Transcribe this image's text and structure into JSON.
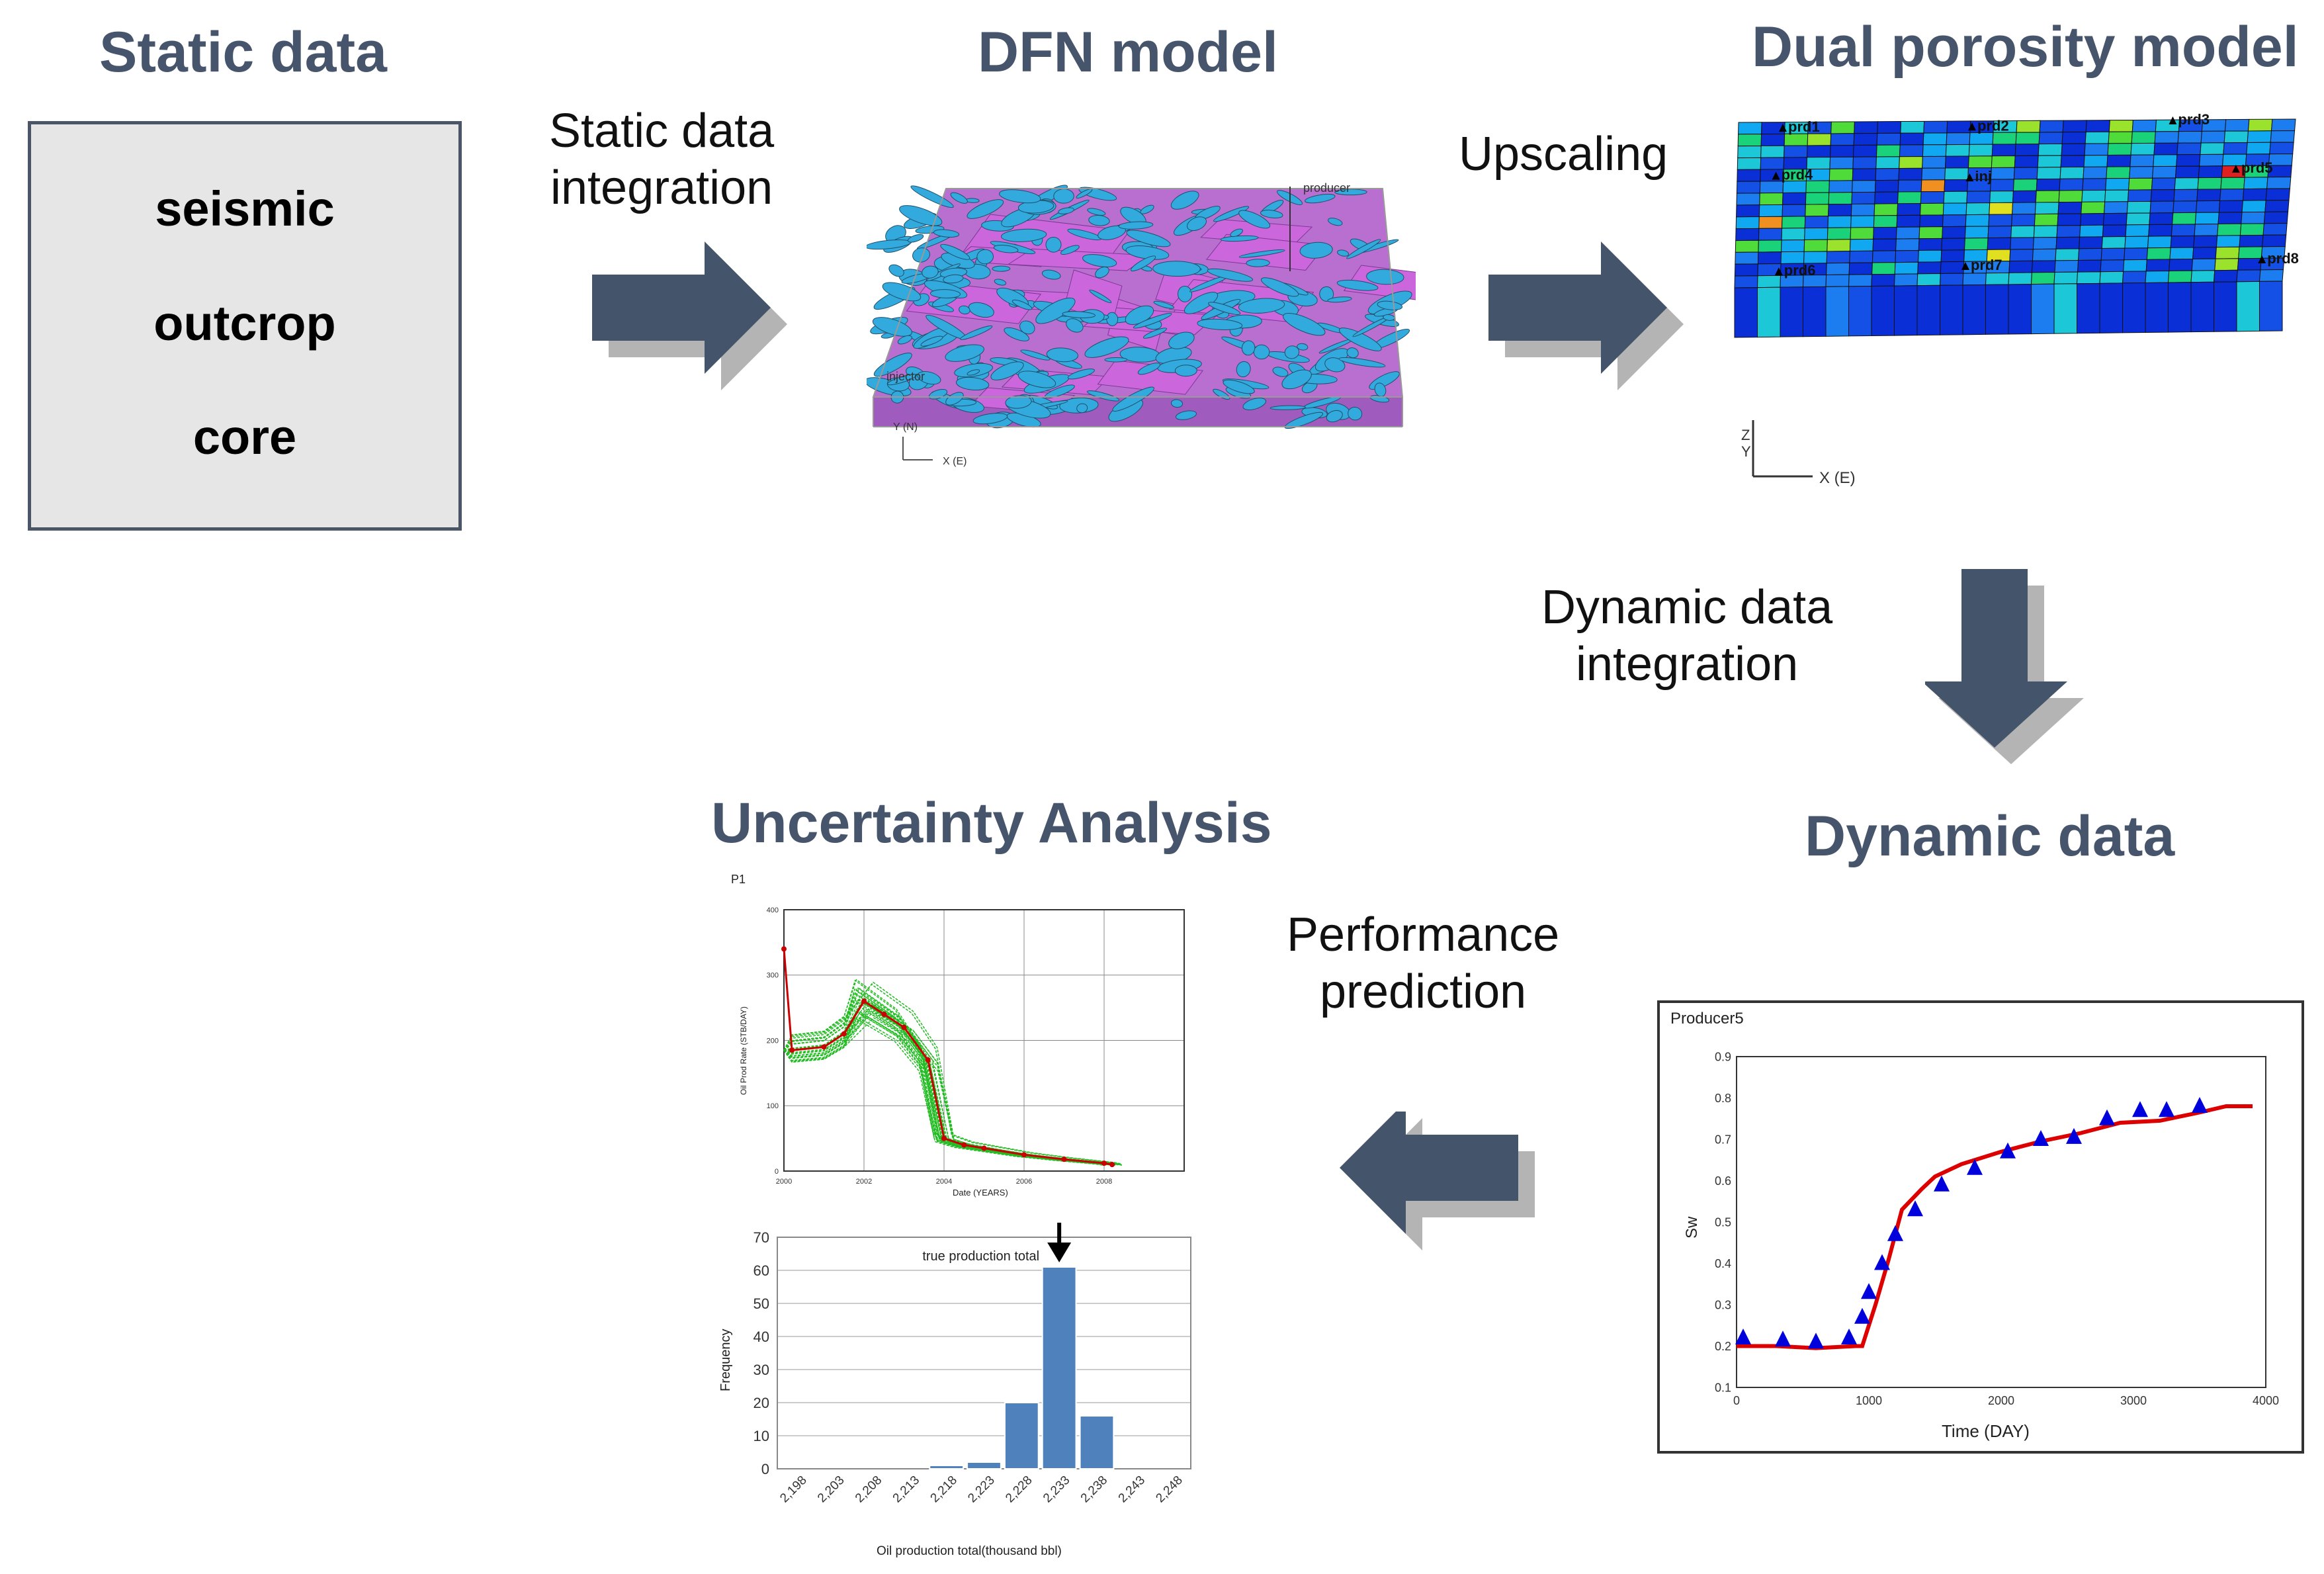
{
  "titles": {
    "static_data": "Static data",
    "dfn_model": "DFN model",
    "dual_porosity": "Dual porosity model",
    "dynamic_data": "Dynamic data",
    "uncertainty": "Uncertainty Analysis"
  },
  "static_box": {
    "items": [
      "seismic",
      "outcrop",
      "core"
    ]
  },
  "step_labels": {
    "static_integration": [
      "Static data",
      "integration"
    ],
    "upscaling": "Upscaling",
    "dynamic_integration": [
      "Dynamic data",
      "integration"
    ],
    "performance": [
      "Performance",
      "prediction"
    ]
  },
  "dfn": {
    "producer": "producer",
    "injector": "injector",
    "axis_y": "Y (N)",
    "axis_x": "X (E)"
  },
  "dual": {
    "wells": [
      "prd1",
      "prd2",
      "prd3",
      "inj",
      "prd4",
      "prd5",
      "prd6",
      "prd7",
      "prd8"
    ],
    "axis_z": "Z",
    "axis_y": "Y",
    "axis_x": "X (E)"
  },
  "colors": {
    "title": "#46556b",
    "arrow": "#44546a",
    "arrow_shadow": "#b4b4b4",
    "dfn_fracture": "#cc66dd",
    "dfn_blue": "#33aadd",
    "fit_line": "#dd0000",
    "obs_marker": "#0000dd",
    "sim_lines": "#22bb22",
    "bar": "#4f81bd"
  },
  "chart_data": [
    {
      "type": "line",
      "title": "Producer5",
      "xlabel": "Time (DAY)",
      "ylabel": "Sw",
      "xlim": [
        0,
        4000
      ],
      "ylim": [
        0.1,
        0.9
      ],
      "xticks": [
        "0",
        "1000",
        "2000",
        "3000",
        "4000"
      ],
      "yticks": [
        "0.1",
        "0.2",
        "0.3",
        "0.4",
        "0.5",
        "0.6",
        "0.7",
        "0.8",
        "0.9"
      ],
      "series": [
        {
          "style": "line",
          "x": [
            0,
            300,
            600,
            900,
            950,
            1050,
            1150,
            1250,
            1400,
            1500,
            1700,
            2000,
            2300,
            2600,
            2900,
            3200,
            3500,
            3700,
            3900
          ],
          "y": [
            0.2,
            0.2,
            0.195,
            0.2,
            0.2,
            0.3,
            0.41,
            0.53,
            0.58,
            0.61,
            0.64,
            0.67,
            0.695,
            0.715,
            0.74,
            0.745,
            0.765,
            0.78,
            0.78
          ]
        },
        {
          "style": "markers",
          "x": [
            50,
            350,
            600,
            850,
            950,
            1000,
            1100,
            1200,
            1350,
            1550,
            1800,
            2050,
            2300,
            2550,
            2800,
            3050,
            3250,
            3500
          ],
          "y": [
            0.22,
            0.215,
            0.21,
            0.22,
            0.27,
            0.33,
            0.4,
            0.47,
            0.53,
            0.59,
            0.63,
            0.67,
            0.7,
            0.705,
            0.75,
            0.77,
            0.77,
            0.78
          ]
        }
      ]
    },
    {
      "type": "line",
      "title": "P1",
      "xlabel": "Date (YEARS)",
      "ylabel": "Oil Prod Rate (STB/DAY)",
      "xlim": [
        2000,
        2010
      ],
      "ylim": [
        0,
        400
      ],
      "xticks": [
        "2000",
        "2002",
        "2004",
        "2006",
        "2008"
      ],
      "yticks": [
        "0",
        "100",
        "200",
        "300",
        "400"
      ],
      "series": [
        {
          "style": "line",
          "x": [
            2000,
            2000.2,
            2001,
            2001.5,
            2002,
            2002.5,
            2003,
            2003.6,
            2004,
            2004.5,
            2005,
            2006,
            2007,
            2008,
            2008.2
          ],
          "y": [
            340,
            185,
            190,
            210,
            260,
            240,
            220,
            170,
            50,
            40,
            35,
            25,
            18,
            12,
            10
          ]
        }
      ]
    },
    {
      "type": "bar",
      "xlabel": "Oil production total(thousand bbl)",
      "ylabel": "Frequency",
      "ylim": [
        0,
        70
      ],
      "yticks": [
        "0",
        "10",
        "20",
        "30",
        "40",
        "50",
        "60",
        "70"
      ],
      "categories": [
        "2,198",
        "2,203",
        "2,208",
        "2,213",
        "2,218",
        "2,223",
        "2,228",
        "2,233",
        "2,238",
        "2,243",
        "2,248"
      ],
      "values": [
        0,
        0,
        0,
        0,
        1,
        2,
        20,
        61,
        16,
        0,
        0
      ],
      "annotation": "true production total"
    }
  ]
}
